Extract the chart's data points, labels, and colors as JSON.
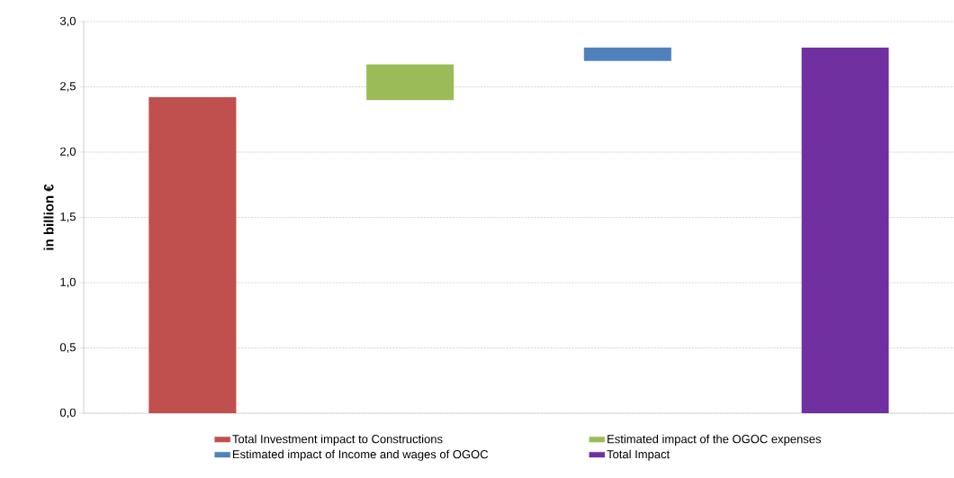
{
  "chart_data": {
    "type": "bar",
    "ylabel": "in billion €",
    "categories": [
      null,
      null,
      null,
      null
    ],
    "series": [
      {
        "name": "Total Investment  impact to Constructions",
        "color": "#c0504d",
        "values": [
          2.42,
          null,
          null,
          null
        ],
        "base": [
          0,
          null,
          null,
          null
        ]
      },
      {
        "name": "Estimated impact of the OGOC expenses",
        "color": "#9bbb59",
        "values": [
          null,
          0.27,
          null,
          null
        ],
        "base": [
          null,
          2.4,
          null,
          null
        ]
      },
      {
        "name": "Estimated impact of Income and wages of OGOC",
        "color": "#4f81bd",
        "values": [
          null,
          null,
          0.1,
          null
        ],
        "base": [
          null,
          null,
          2.7,
          null
        ]
      },
      {
        "name": "Total Impact",
        "color": "#7030a0",
        "values": [
          null,
          null,
          null,
          2.8
        ],
        "base": [
          null,
          null,
          null,
          0
        ]
      }
    ],
    "ylim": [
      0,
      3
    ],
    "yticks": [
      {
        "value": 0,
        "label": "0,0"
      },
      {
        "value": 0.5,
        "label": "0,5"
      },
      {
        "value": 1,
        "label": "1,0"
      },
      {
        "value": 1.5,
        "label": "1,5"
      },
      {
        "value": 2,
        "label": "2,0"
      },
      {
        "value": 2.5,
        "label": "2,5"
      },
      {
        "value": 3,
        "label": "3,0"
      }
    ],
    "grid": "y",
    "legend": "bottom"
  }
}
